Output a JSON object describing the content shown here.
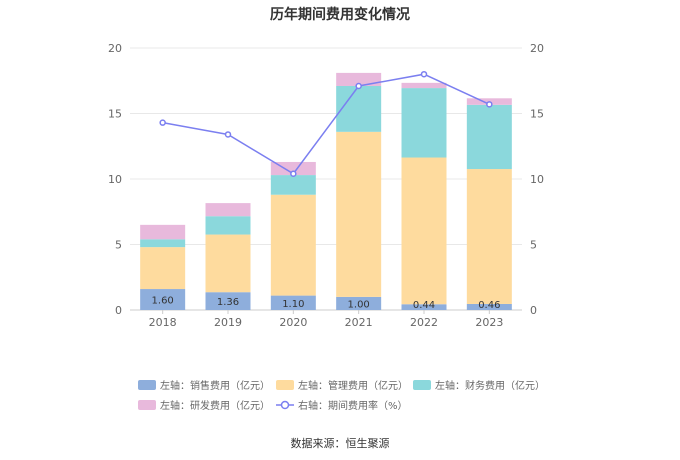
{
  "chart_data": {
    "type": "bar",
    "title": "历年期间费用变化情况",
    "categories": [
      "2018",
      "2019",
      "2020",
      "2021",
      "2022",
      "2023"
    ],
    "left_axis": {
      "min": 0,
      "max": 20,
      "ticks": [
        "0",
        "5",
        "10",
        "15",
        "20"
      ]
    },
    "right_axis": {
      "min": 0,
      "max": 20,
      "ticks": [
        "0",
        "5",
        "10",
        "15",
        "20"
      ]
    },
    "series": [
      {
        "name": "左轴：销售费用（亿元）",
        "type": "bar",
        "color": "#8eaedc",
        "values": [
          1.6,
          1.36,
          1.1,
          1.0,
          0.44,
          0.46
        ],
        "labels": [
          "1.60",
          "1.36",
          "1.10",
          "1.00",
          "0.44",
          "0.46"
        ]
      },
      {
        "name": "左轴：管理费用（亿元）",
        "type": "bar",
        "color": "#fedb9e",
        "values": [
          3.2,
          4.4,
          7.7,
          12.6,
          11.2,
          10.3
        ]
      },
      {
        "name": "左轴：财务费用（亿元）",
        "type": "bar",
        "color": "#8bd8dc",
        "values": [
          0.6,
          1.4,
          1.5,
          3.5,
          5.3,
          4.9
        ]
      },
      {
        "name": "左轴：研发费用（亿元）",
        "type": "bar",
        "color": "#e8b9dc",
        "values": [
          1.1,
          1.0,
          1.0,
          1.0,
          0.4,
          0.5
        ]
      },
      {
        "name": "右轴：期间费用率（%）",
        "type": "line",
        "color": "#7b7ff0",
        "values": [
          14.3,
          13.4,
          10.4,
          17.1,
          18.0,
          15.7
        ]
      }
    ],
    "source": "数据来源：恒生聚源"
  }
}
